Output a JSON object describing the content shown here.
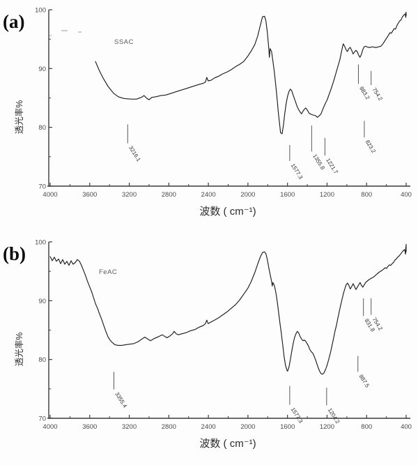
{
  "style": {
    "background": "#fdfdfd",
    "ink": "#1c1c1c",
    "axis": "#3a3a3a",
    "tick_label": "#4a4a4a",
    "peak_label": "#2f2f2f",
    "sample_label": "#5a5a5a",
    "panel_letter": "#0a0a0a",
    "artifact": "#9a9a9a"
  },
  "chart_data": [
    {
      "type": "line",
      "panel_label": "(a)",
      "series_name": "SSAC",
      "xlabel": "波数 ( cm⁻¹)",
      "ylabel": "透光率%",
      "xlim": [
        4000,
        400
      ],
      "ylim": [
        70,
        100
      ],
      "x_ticks": [
        4000,
        3600,
        3200,
        2800,
        2400,
        2000,
        1600,
        1200,
        800,
        400
      ],
      "x_minor_ticks": [
        3800,
        3400,
        3000,
        2600,
        2200,
        1800,
        1400,
        1000,
        600
      ],
      "y_ticks": [
        100,
        90,
        80,
        70
      ],
      "y_minor_ticks": [
        95,
        85,
        75
      ],
      "grid": false,
      "peak_annotations": [
        {
          "label": "3216.1",
          "wavenumber": 3216.1,
          "tick_from": 80.5,
          "tick_to": 77.3
        },
        {
          "label": "1577.3",
          "wavenumber": 1577.3,
          "tick_from": 77.0,
          "tick_to": 74.3
        },
        {
          "label": "1355.8",
          "wavenumber": 1355.8,
          "tick_from": 80.3,
          "tick_to": 75.9
        },
        {
          "label": "1221.7",
          "wavenumber": 1221.7,
          "tick_from": 78.2,
          "tick_to": 75.2
        },
        {
          "label": "883.2",
          "wavenumber": 883.2,
          "tick_from": 90.7,
          "tick_to": 87.4
        },
        {
          "label": "754.2",
          "wavenumber": 754.2,
          "tick_from": 89.6,
          "tick_to": 87.2
        },
        {
          "label": "823.2",
          "wavenumber": 823.2,
          "tick_from": 81.1,
          "tick_to": 78.3
        }
      ],
      "points": [
        [
          3542,
          91.2
        ],
        [
          3507,
          89.8
        ],
        [
          3465,
          88.4
        ],
        [
          3416,
          87.0
        ],
        [
          3359,
          85.8
        ],
        [
          3310,
          85.2
        ],
        [
          3254,
          84.9
        ],
        [
          3183,
          84.8
        ],
        [
          3127,
          84.8
        ],
        [
          3078,
          85.1
        ],
        [
          3050,
          85.4
        ],
        [
          3021,
          84.9
        ],
        [
          3000,
          84.7
        ],
        [
          2972,
          85.1
        ],
        [
          2930,
          85.2
        ],
        [
          2881,
          85.4
        ],
        [
          2831,
          85.5
        ],
        [
          2775,
          85.8
        ],
        [
          2719,
          86.1
        ],
        [
          2662,
          86.4
        ],
        [
          2606,
          86.7
        ],
        [
          2550,
          87.0
        ],
        [
          2493,
          87.3
        ],
        [
          2451,
          87.5
        ],
        [
          2430,
          87.7
        ],
        [
          2416,
          88.5
        ],
        [
          2402,
          87.9
        ],
        [
          2374,
          88.0
        ],
        [
          2338,
          88.4
        ],
        [
          2296,
          88.7
        ],
        [
          2254,
          89.1
        ],
        [
          2212,
          89.4
        ],
        [
          2170,
          89.8
        ],
        [
          2127,
          90.3
        ],
        [
          2085,
          90.7
        ],
        [
          2043,
          91.2
        ],
        [
          2001,
          92.1
        ],
        [
          1966,
          93.0
        ],
        [
          1930,
          94.1
        ],
        [
          1902,
          95.5
        ],
        [
          1874,
          97.4
        ],
        [
          1853,
          98.8
        ],
        [
          1832,
          98.9
        ],
        [
          1818,
          98.1
        ],
        [
          1804,
          96.2
        ],
        [
          1790,
          93.6
        ],
        [
          1783,
          91.9
        ],
        [
          1776,
          93.4
        ],
        [
          1761,
          92.9
        ],
        [
          1747,
          91.2
        ],
        [
          1733,
          89.4
        ],
        [
          1719,
          87.2
        ],
        [
          1705,
          84.8
        ],
        [
          1691,
          82.3
        ],
        [
          1677,
          80.2
        ],
        [
          1670,
          79.1
        ],
        [
          1655,
          78.9
        ],
        [
          1641,
          80.3
        ],
        [
          1627,
          82.4
        ],
        [
          1613,
          84.1
        ],
        [
          1599,
          85.3
        ],
        [
          1585,
          86.1
        ],
        [
          1571,
          86.5
        ],
        [
          1557,
          86.2
        ],
        [
          1543,
          85.5
        ],
        [
          1522,
          84.5
        ],
        [
          1501,
          83.5
        ],
        [
          1480,
          82.8
        ],
        [
          1459,
          82.3
        ],
        [
          1438,
          82.9
        ],
        [
          1416,
          83.3
        ],
        [
          1402,
          83.0
        ],
        [
          1381,
          82.4
        ],
        [
          1360,
          82.2
        ],
        [
          1339,
          82.1
        ],
        [
          1318,
          82.0
        ],
        [
          1297,
          81.7
        ],
        [
          1283,
          81.9
        ],
        [
          1261,
          82.3
        ],
        [
          1240,
          83.2
        ],
        [
          1219,
          84.0
        ],
        [
          1198,
          84.7
        ],
        [
          1177,
          85.7
        ],
        [
          1156,
          86.7
        ],
        [
          1135,
          87.8
        ],
        [
          1114,
          89.0
        ],
        [
          1093,
          90.2
        ],
        [
          1071,
          91.5
        ],
        [
          1057,
          92.6
        ],
        [
          1043,
          93.7
        ],
        [
          1036,
          94.2
        ],
        [
          1022,
          93.8
        ],
        [
          1008,
          93.2
        ],
        [
          994,
          92.9
        ],
        [
          980,
          93.4
        ],
        [
          966,
          93.6
        ],
        [
          951,
          93.1
        ],
        [
          937,
          92.5
        ],
        [
          923,
          92.8
        ],
        [
          909,
          93.1
        ],
        [
          895,
          92.9
        ],
        [
          881,
          92.3
        ],
        [
          867,
          91.9
        ],
        [
          853,
          92.4
        ],
        [
          839,
          93.2
        ],
        [
          825,
          93.7
        ],
        [
          811,
          93.8
        ],
        [
          797,
          93.7
        ],
        [
          783,
          93.6
        ],
        [
          761,
          93.6
        ],
        [
          740,
          93.7
        ],
        [
          719,
          93.6
        ],
        [
          698,
          93.6
        ],
        [
          677,
          93.7
        ],
        [
          656,
          93.8
        ],
        [
          635,
          94.2
        ],
        [
          613,
          94.8
        ],
        [
          592,
          95.3
        ],
        [
          578,
          95.7
        ],
        [
          564,
          96.1
        ],
        [
          550,
          96.0
        ],
        [
          536,
          96.4
        ],
        [
          522,
          96.8
        ],
        [
          508,
          96.7
        ],
        [
          494,
          97.3
        ],
        [
          480,
          97.7
        ],
        [
          465,
          98.1
        ],
        [
          451,
          98.3
        ],
        [
          437,
          98.8
        ],
        [
          423,
          99.1
        ],
        [
          409,
          99.3
        ],
        [
          404,
          98.7
        ],
        [
          401,
          99.6
        ],
        [
          400,
          99.0
        ]
      ]
    },
    {
      "type": "line",
      "panel_label": "(b)",
      "series_name": "FeAC",
      "xlabel": "波数 ( cm⁻¹)",
      "ylabel": "透光率%",
      "xlim": [
        4000,
        400
      ],
      "ylim": [
        70,
        100
      ],
      "x_ticks": [
        4000,
        3600,
        3200,
        2800,
        2400,
        2000,
        1600,
        1200,
        800,
        400
      ],
      "x_minor_ticks": [
        3800,
        3400,
        3000,
        2600,
        2200,
        1800,
        1400,
        1000,
        600
      ],
      "y_ticks": [
        100,
        90,
        80,
        70
      ],
      "y_minor_ticks": [
        95,
        85,
        75
      ],
      "grid": false,
      "peak_annotations": [
        {
          "label": "3355.4",
          "wavenumber": 3355.4,
          "tick_from": 77.9,
          "tick_to": 74.9
        },
        {
          "label": "1577.3",
          "wavenumber": 1577.3,
          "tick_from": 75.5,
          "tick_to": 72.3
        },
        {
          "label": "1204.2",
          "wavenumber": 1204.2,
          "tick_from": 75.2,
          "tick_to": 72.2
        },
        {
          "label": "831.8",
          "wavenumber": 831.8,
          "tick_from": 90.4,
          "tick_to": 87.4
        },
        {
          "label": "754.2",
          "wavenumber": 754.2,
          "tick_from": 90.4,
          "tick_to": 87.6
        },
        {
          "label": "887.5",
          "wavenumber": 887.5,
          "tick_from": 80.6,
          "tick_to": 77.9
        }
      ],
      "points": [
        [
          4000,
          97.5
        ],
        [
          3993,
          97.3
        ],
        [
          3979,
          96.8
        ],
        [
          3958,
          97.4
        ],
        [
          3937,
          96.7
        ],
        [
          3915,
          97.1
        ],
        [
          3894,
          96.3
        ],
        [
          3873,
          97.0
        ],
        [
          3852,
          96.2
        ],
        [
          3831,
          96.7
        ],
        [
          3810,
          96.0
        ],
        [
          3789,
          96.8
        ],
        [
          3768,
          96.2
        ],
        [
          3746,
          96.5
        ],
        [
          3725,
          97.0
        ],
        [
          3704,
          96.7
        ],
        [
          3683,
          96.0
        ],
        [
          3662,
          95.1
        ],
        [
          3641,
          94.2
        ],
        [
          3620,
          93.2
        ],
        [
          3599,
          92.3
        ],
        [
          3578,
          91.4
        ],
        [
          3542,
          89.5
        ],
        [
          3521,
          88.7
        ],
        [
          3500,
          87.7
        ],
        [
          3479,
          86.8
        ],
        [
          3458,
          85.8
        ],
        [
          3437,
          84.8
        ],
        [
          3416,
          83.9
        ],
        [
          3395,
          83.3
        ],
        [
          3373,
          82.9
        ],
        [
          3345,
          82.5
        ],
        [
          3310,
          82.4
        ],
        [
          3275,
          82.4
        ],
        [
          3240,
          82.5
        ],
        [
          3197,
          82.6
        ],
        [
          3155,
          82.7
        ],
        [
          3113,
          83.0
        ],
        [
          3071,
          83.5
        ],
        [
          3043,
          83.8
        ],
        [
          3014,
          83.5
        ],
        [
          2986,
          83.2
        ],
        [
          2944,
          83.6
        ],
        [
          2902,
          83.9
        ],
        [
          2867,
          84.2
        ],
        [
          2838,
          83.9
        ],
        [
          2817,
          83.7
        ],
        [
          2789,
          84.0
        ],
        [
          2761,
          84.4
        ],
        [
          2747,
          84.8
        ],
        [
          2726,
          84.4
        ],
        [
          2705,
          84.2
        ],
        [
          2662,
          84.4
        ],
        [
          2620,
          84.6
        ],
        [
          2578,
          84.9
        ],
        [
          2536,
          85.1
        ],
        [
          2493,
          85.5
        ],
        [
          2451,
          85.8
        ],
        [
          2430,
          86.1
        ],
        [
          2416,
          86.7
        ],
        [
          2402,
          86.1
        ],
        [
          2381,
          86.3
        ],
        [
          2338,
          86.7
        ],
        [
          2296,
          87.1
        ],
        [
          2254,
          87.6
        ],
        [
          2212,
          88.1
        ],
        [
          2170,
          88.7
        ],
        [
          2127,
          89.3
        ],
        [
          2085,
          90.1
        ],
        [
          2043,
          91.1
        ],
        [
          2001,
          92.1
        ],
        [
          1966,
          93.3
        ],
        [
          1930,
          94.8
        ],
        [
          1902,
          96.2
        ],
        [
          1874,
          97.5
        ],
        [
          1853,
          98.2
        ],
        [
          1832,
          98.3
        ],
        [
          1818,
          98.0
        ],
        [
          1804,
          97.0
        ],
        [
          1790,
          95.7
        ],
        [
          1776,
          94.5
        ],
        [
          1761,
          93.3
        ],
        [
          1754,
          92.5
        ],
        [
          1747,
          93.1
        ],
        [
          1733,
          92.6
        ],
        [
          1719,
          91.5
        ],
        [
          1705,
          90.0
        ],
        [
          1691,
          88.2
        ],
        [
          1677,
          86.3
        ],
        [
          1662,
          84.4
        ],
        [
          1648,
          82.4
        ],
        [
          1634,
          80.5
        ],
        [
          1620,
          79.0
        ],
        [
          1606,
          78.2
        ],
        [
          1599,
          78.0
        ],
        [
          1585,
          78.7
        ],
        [
          1571,
          80.0
        ],
        [
          1557,
          81.4
        ],
        [
          1543,
          82.7
        ],
        [
          1529,
          83.7
        ],
        [
          1514,
          84.4
        ],
        [
          1500,
          84.8
        ],
        [
          1486,
          84.5
        ],
        [
          1472,
          83.9
        ],
        [
          1458,
          83.5
        ],
        [
          1444,
          83.2
        ],
        [
          1430,
          83.3
        ],
        [
          1416,
          83.1
        ],
        [
          1402,
          82.7
        ],
        [
          1388,
          82.3
        ],
        [
          1374,
          81.7
        ],
        [
          1359,
          81.3
        ],
        [
          1345,
          81.1
        ],
        [
          1331,
          80.6
        ],
        [
          1317,
          80.0
        ],
        [
          1303,
          79.3
        ],
        [
          1289,
          78.6
        ],
        [
          1275,
          78.0
        ],
        [
          1261,
          77.6
        ],
        [
          1247,
          77.5
        ],
        [
          1232,
          77.7
        ],
        [
          1218,
          78.2
        ],
        [
          1204,
          78.8
        ],
        [
          1190,
          79.6
        ],
        [
          1176,
          80.5
        ],
        [
          1162,
          81.4
        ],
        [
          1148,
          82.5
        ],
        [
          1134,
          83.6
        ],
        [
          1120,
          84.8
        ],
        [
          1105,
          85.8
        ],
        [
          1091,
          87.0
        ],
        [
          1077,
          88.1
        ],
        [
          1063,
          89.2
        ],
        [
          1049,
          90.2
        ],
        [
          1035,
          91.2
        ],
        [
          1021,
          92.0
        ],
        [
          1007,
          92.7
        ],
        [
          993,
          93.0
        ],
        [
          979,
          92.6
        ],
        [
          965,
          92.0
        ],
        [
          951,
          92.4
        ],
        [
          936,
          92.9
        ],
        [
          922,
          92.4
        ],
        [
          908,
          91.9
        ],
        [
          894,
          92.3
        ],
        [
          880,
          92.7
        ],
        [
          866,
          93.1
        ],
        [
          852,
          92.6
        ],
        [
          838,
          92.3
        ],
        [
          824,
          92.7
        ],
        [
          810,
          93.1
        ],
        [
          796,
          93.3
        ],
        [
          775,
          93.6
        ],
        [
          754,
          93.8
        ],
        [
          732,
          94.0
        ],
        [
          711,
          94.3
        ],
        [
          690,
          94.6
        ],
        [
          669,
          94.9
        ],
        [
          648,
          95.1
        ],
        [
          627,
          95.4
        ],
        [
          613,
          95.6
        ],
        [
          599,
          95.5
        ],
        [
          585,
          95.8
        ],
        [
          570,
          96.1
        ],
        [
          556,
          96.0
        ],
        [
          542,
          96.3
        ],
        [
          528,
          96.5
        ],
        [
          514,
          96.9
        ],
        [
          500,
          97.1
        ],
        [
          486,
          97.4
        ],
        [
          472,
          97.6
        ],
        [
          458,
          97.9
        ],
        [
          444,
          98.2
        ],
        [
          430,
          98.5
        ],
        [
          415,
          98.7
        ],
        [
          406,
          97.9
        ],
        [
          403,
          99.2
        ],
        [
          401,
          98.3
        ],
        [
          400,
          99.6
        ]
      ]
    }
  ]
}
